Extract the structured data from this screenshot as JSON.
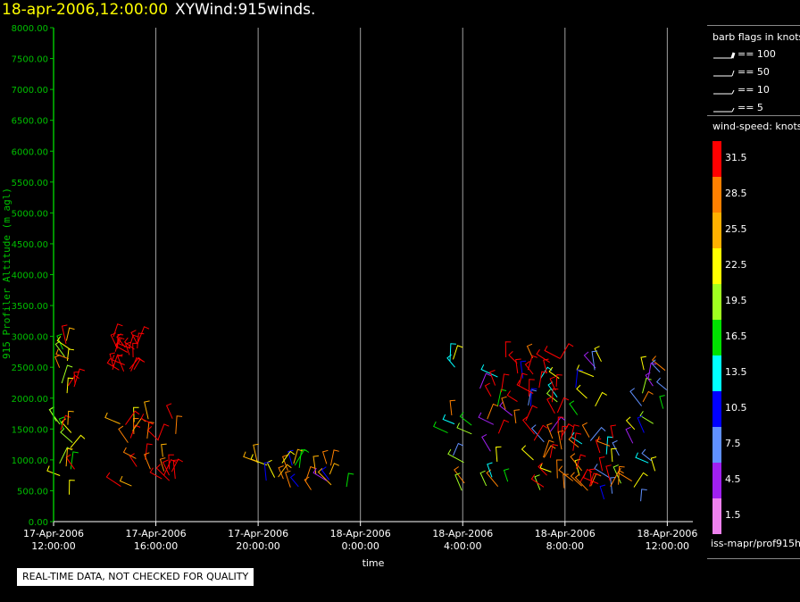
{
  "header": {
    "date": "18-apr-2006,12:00:00",
    "title": "XYWind:915winds."
  },
  "quality_note": "REAL-TIME DATA, NOT CHECKED FOR QUALITY",
  "footer": {
    "source": "iss-mapr/prof915h"
  },
  "legend": {
    "barb_title": "barb flags in knots",
    "barbs": [
      {
        "label": "== 100"
      },
      {
        "label": "== 50"
      },
      {
        "label": "== 10"
      },
      {
        "label": "== 5"
      }
    ],
    "speed_title": "wind-speed: knots",
    "colorbar": [
      {
        "label": "31.5",
        "color": "#ff0000"
      },
      {
        "label": "28.5",
        "color": "#ff8000"
      },
      {
        "label": "25.5",
        "color": "#ffb000"
      },
      {
        "label": "22.5",
        "color": "#ffff00"
      },
      {
        "label": "19.5",
        "color": "#a0ff20"
      },
      {
        "label": "16.5",
        "color": "#00e000"
      },
      {
        "label": "13.5",
        "color": "#00ffff"
      },
      {
        "label": "10.5",
        "color": "#0000ff"
      },
      {
        "label": "7.5",
        "color": "#6090ff"
      },
      {
        "label": "4.5",
        "color": "#a020f0"
      },
      {
        "label": "1.5",
        "color": "#ee82ee"
      }
    ]
  },
  "chart_data": {
    "type": "scatter",
    "ylabel": "915 Profiler Altitude (m agl)",
    "xlabel": "time",
    "ylim": [
      0,
      8000
    ],
    "y_ticks": [
      "0.00",
      "500.00",
      "1000.00",
      "1500.00",
      "2000.00",
      "2500.00",
      "3000.00",
      "3500.00",
      "4000.00",
      "4500.00",
      "5000.00",
      "5500.00",
      "6000.00",
      "6500.00",
      "7000.00",
      "7500.00",
      "8000.00"
    ],
    "x_hours": [
      0,
      4,
      8,
      12,
      16,
      20,
      24
    ],
    "x_ticks": [
      {
        "date": "17-Apr-2006",
        "time": "12:00:00"
      },
      {
        "date": "17-Apr-2006",
        "time": "16:00:00"
      },
      {
        "date": "17-Apr-2006",
        "time": "20:00:00"
      },
      {
        "date": "18-Apr-2006",
        "time": "0:00:00"
      },
      {
        "date": "18-Apr-2006",
        "time": "4:00:00"
      },
      {
        "date": "18-Apr-2006",
        "time": "8:00:00"
      },
      {
        "date": "18-Apr-2006",
        "time": "12:00:00"
      }
    ],
    "grid": true,
    "axis_color": "#00c000",
    "barb_regions": [
      {
        "x_range": [
          0.0,
          1.0
        ],
        "y_range": [
          400,
          3000
        ],
        "colors": [
          "#ff0000",
          "#ff0000",
          "#ff8000",
          "#ffb000",
          "#ffff00",
          "#a0ff20",
          "#00e000"
        ]
      },
      {
        "x_range": [
          2.4,
          4.8
        ],
        "y_range": [
          400,
          1700
        ],
        "colors": [
          "#ff0000",
          "#ff0000",
          "#ff8000",
          "#ffb000",
          "#ffff00"
        ]
      },
      {
        "x_range": [
          2.3,
          3.3
        ],
        "y_range": [
          2400,
          3000
        ],
        "colors": [
          "#ff0000"
        ]
      },
      {
        "x_range": [
          7.8,
          11.6
        ],
        "y_range": [
          500,
          1000
        ],
        "colors": [
          "#ffb000",
          "#ffff00",
          "#ff8000",
          "#00e000",
          "#a020f0",
          "#0000ff"
        ]
      },
      {
        "x_range": [
          15.4,
          24.0
        ],
        "y_range": [
          300,
          2700
        ],
        "colors": [
          "#00ffff",
          "#0000ff",
          "#6090ff",
          "#00e000",
          "#a0ff20",
          "#ffff00",
          "#ff8000",
          "#a020f0"
        ]
      },
      {
        "x_range": [
          17.1,
          19.9
        ],
        "y_range": [
          1300,
          2700
        ],
        "colors": [
          "#ff0000",
          "#ff0000",
          "#ff0000",
          "#ff8000"
        ]
      },
      {
        "x_range": [
          19.0,
          22.0
        ],
        "y_range": [
          500,
          1400
        ],
        "colors": [
          "#ff0000",
          "#ff8000",
          "#ff0000"
        ]
      }
    ]
  }
}
